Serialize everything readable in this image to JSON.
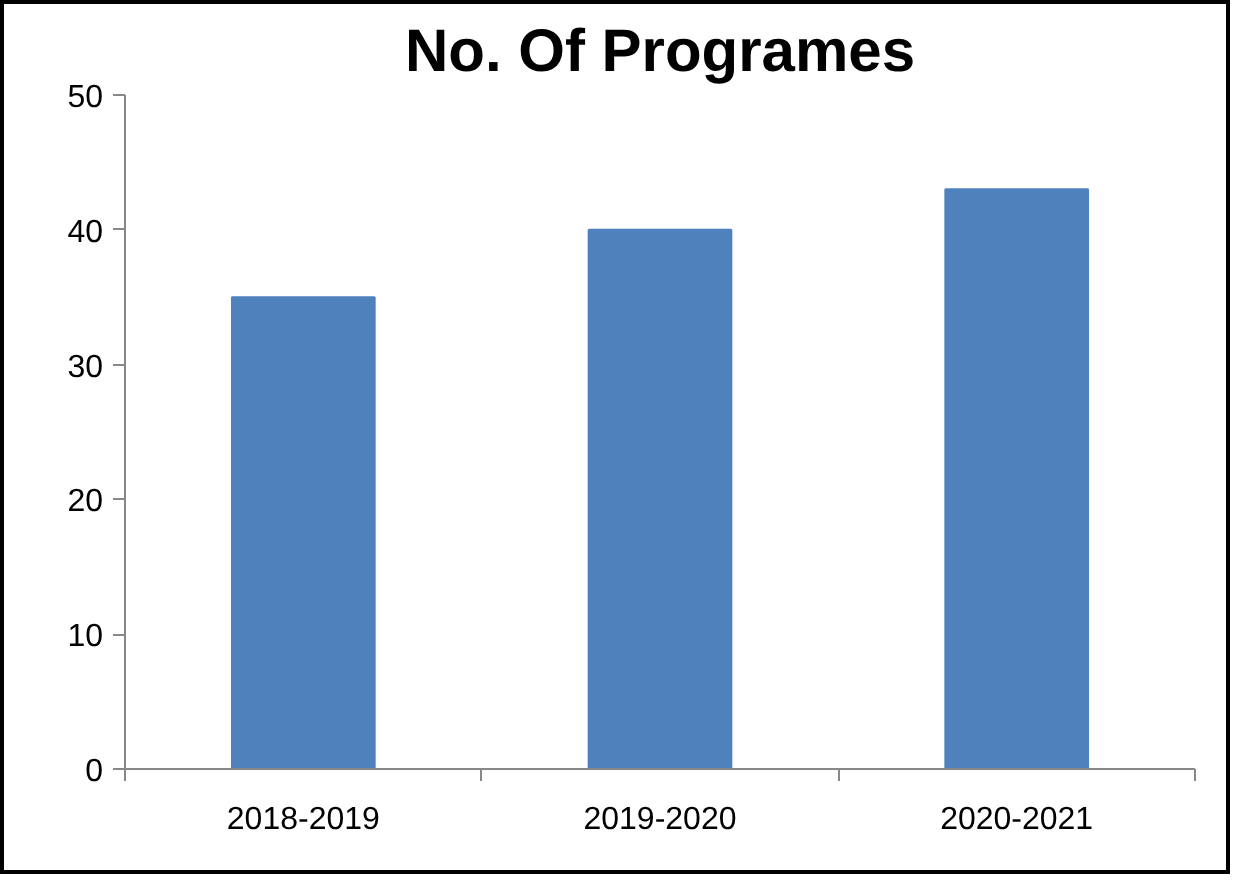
{
  "chart_data": {
    "type": "bar",
    "title": "No. Of Programes",
    "categories": [
      "2018-2019",
      "2019-2020",
      "2020-2021"
    ],
    "values": [
      35,
      40,
      43
    ],
    "color": "#4f81bd",
    "ylim": [
      0,
      50
    ],
    "yticks": [
      0,
      10,
      20,
      30,
      40,
      50
    ],
    "grid": false
  }
}
